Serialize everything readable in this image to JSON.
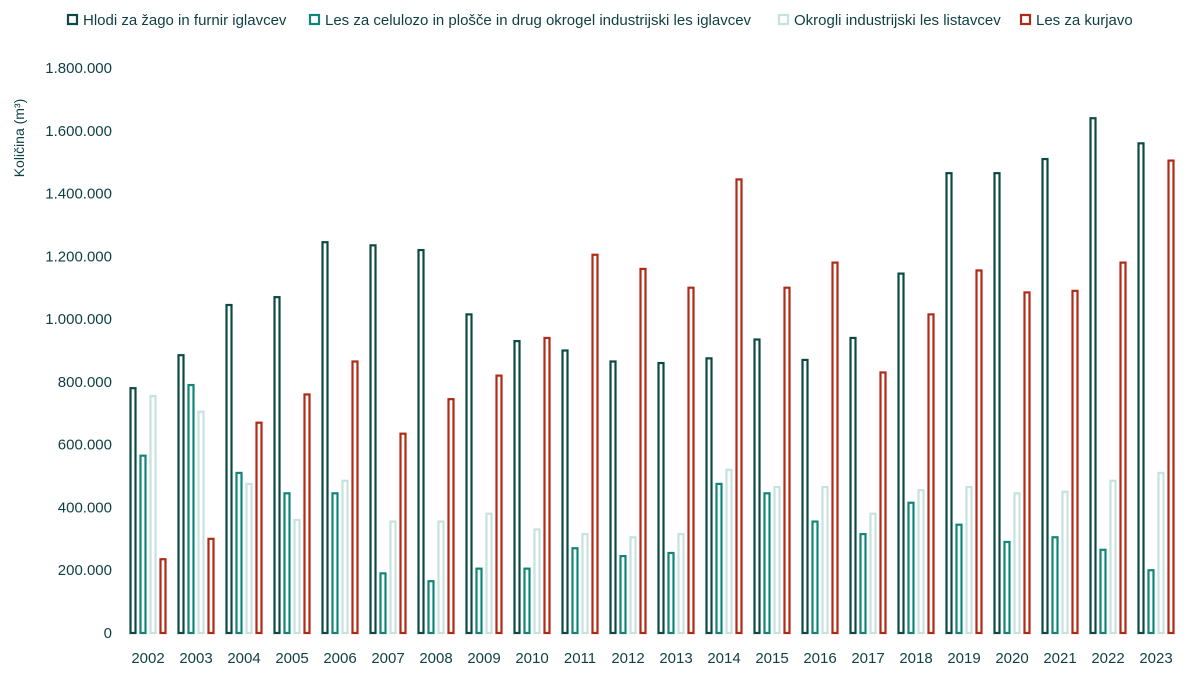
{
  "chart_data": {
    "type": "bar",
    "title": "",
    "xlabel": "",
    "ylabel": "Količina (m³)",
    "ylim": [
      0,
      1800000
    ],
    "yticks": [
      0,
      200000,
      400000,
      600000,
      800000,
      1000000,
      1200000,
      1400000,
      1600000,
      1800000
    ],
    "ytick_labels": [
      "0",
      "200.000",
      "400.000",
      "600.000",
      "800.000",
      "1.000.000",
      "1.200.000",
      "1.400.000",
      "1.600.000",
      "1.800.000"
    ],
    "grid": false,
    "legend_position": "top",
    "bar_style": "outlined",
    "categories": [
      "2002",
      "2003",
      "2004",
      "2005",
      "2006",
      "2007",
      "2008",
      "2009",
      "2010",
      "2011",
      "2012",
      "2013",
      "2014",
      "2015",
      "2016",
      "2017",
      "2018",
      "2019",
      "2020",
      "2021",
      "2022",
      "2023"
    ],
    "series": [
      {
        "name": "Hlodi za žago in furnir iglavcev",
        "color": "#0e4a45",
        "values": [
          780000,
          885000,
          1045000,
          1070000,
          1245000,
          1235000,
          1220000,
          1015000,
          930000,
          900000,
          865000,
          860000,
          875000,
          935000,
          870000,
          940000,
          1145000,
          1465000,
          1465000,
          1510000,
          1640000,
          1560000
        ]
      },
      {
        "name": "Les za celulozo in plošče in drug okrogel industrijski les iglavcev",
        "color": "#12857a",
        "values": [
          565000,
          790000,
          510000,
          445000,
          445000,
          190000,
          165000,
          205000,
          205000,
          270000,
          245000,
          255000,
          475000,
          445000,
          355000,
          315000,
          415000,
          345000,
          290000,
          305000,
          265000,
          200000
        ]
      },
      {
        "name": "Okrogli industrijski les listavcev",
        "color": "#c6e2de",
        "values": [
          755000,
          705000,
          475000,
          360000,
          485000,
          355000,
          355000,
          380000,
          330000,
          315000,
          305000,
          315000,
          520000,
          465000,
          465000,
          380000,
          455000,
          465000,
          445000,
          450000,
          485000,
          510000
        ]
      },
      {
        "name": "Les za kurjavo",
        "color": "#b02a18",
        "values": [
          235000,
          300000,
          670000,
          760000,
          865000,
          635000,
          745000,
          820000,
          940000,
          1205000,
          1160000,
          1100000,
          1445000,
          1100000,
          1180000,
          830000,
          1015000,
          1155000,
          1085000,
          1090000,
          1180000,
          1505000
        ]
      }
    ]
  }
}
